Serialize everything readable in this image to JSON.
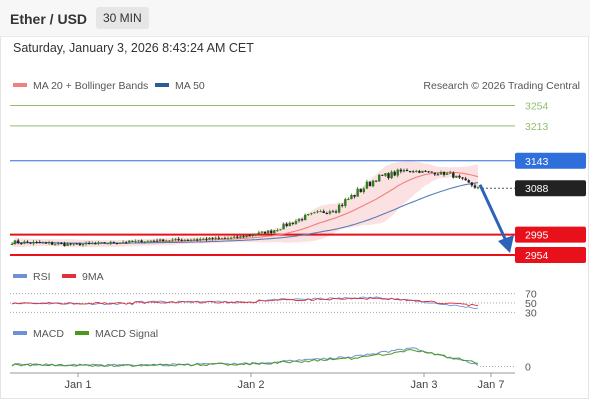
{
  "header": {
    "pair": "Ether / USD",
    "timeframe": "30 MIN"
  },
  "datetime": "Saturday, January 3, 2026 8:43:24 AM CET",
  "legend": {
    "ma20": "MA 20 + Bollinger Bands",
    "ma50": "MA 50",
    "credit": "Research © 2026 Trading Central",
    "rsi": "RSI",
    "rsi_ma": "9MA",
    "macd": "MACD",
    "macd_signal": "MACD Signal"
  },
  "colors": {
    "candle_up": "#2e7d1e",
    "candle_down": "#222222",
    "ma20": "#f08080",
    "band": "#f8c8c8",
    "ma50": "#5a7db5",
    "resistance": "#2f6fdc",
    "support": "#e8101a",
    "target_green": "#8fbf6f",
    "rsi": "#6f8fd8",
    "rsi_ma": "#e0303a",
    "macd": "#6f8fd8",
    "macd_signal": "#4a9a1a",
    "arrow": "#2c62b8"
  },
  "chart_data": [
    {
      "type": "line",
      "subtype": "candlestick",
      "instrument": "Ether / USD",
      "timeframe": "30 MIN",
      "x_ticks": [
        "Jan 1",
        "Jan 2",
        "Jan 3",
        "Jan 7"
      ],
      "ylim": [
        2940,
        3275
      ],
      "levels": [
        {
          "value": 3254,
          "label": "3254",
          "kind": "target"
        },
        {
          "value": 3213,
          "label": "3213",
          "kind": "target"
        },
        {
          "value": 3143,
          "label": "3143",
          "kind": "resistance"
        },
        {
          "value": 3088,
          "label": "3088",
          "kind": "last"
        },
        {
          "value": 2995,
          "label": "2995",
          "kind": "support"
        },
        {
          "value": 2954,
          "label": "2954",
          "kind": "support"
        }
      ],
      "segments": [
        {
          "bars": 20,
          "start": 2980,
          "end": 2975,
          "noise": 5
        },
        {
          "bars": 26,
          "start": 2975,
          "end": 2983,
          "noise": 3
        },
        {
          "bars": 26,
          "start": 2983,
          "end": 2988,
          "noise": 3
        },
        {
          "bars": 12,
          "start": 2988,
          "end": 3002,
          "noise": 4
        },
        {
          "bars": 11,
          "start": 3002,
          "end": 3030,
          "noise": 6
        },
        {
          "bars": 10,
          "start": 3030,
          "end": 3048,
          "noise": 7
        },
        {
          "bars": 13,
          "start": 3048,
          "end": 3108,
          "noise": 11
        },
        {
          "bars": 10,
          "start": 3108,
          "end": 3124,
          "noise": 8
        },
        {
          "bars": 14,
          "start": 3124,
          "end": 3116,
          "noise": 4
        },
        {
          "bars": 10,
          "start": 3116,
          "end": 3085,
          "noise": 5
        }
      ],
      "forecast": {
        "from": 3095,
        "to": 2962
      }
    },
    {
      "type": "line",
      "name_printed": "RSI",
      "ylim": [
        20,
        80
      ],
      "y_ticks": [
        70,
        50,
        30
      ],
      "series": [
        {
          "name": "RSI",
          "segments": [
            [
              40,
              50,
              48
            ],
            [
              40,
              52,
              52
            ],
            [
              40,
              56,
              62
            ],
            [
              32,
              62,
              38
            ]
          ]
        },
        {
          "name": "9MA",
          "segments": [
            [
              40,
              50,
              49
            ],
            [
              40,
              51,
              52
            ],
            [
              40,
              55,
              60
            ],
            [
              32,
              60,
              44
            ]
          ]
        }
      ]
    },
    {
      "type": "line",
      "name_printed": "MACD",
      "ylim": [
        -10,
        45
      ],
      "y_ticks": [
        0
      ],
      "series": [
        {
          "name": "MACD",
          "segments": [
            [
              40,
              4,
              2
            ],
            [
              40,
              2,
              6
            ],
            [
              30,
              6,
              18
            ],
            [
              20,
              18,
              34
            ],
            [
              22,
              34,
              2
            ]
          ]
        },
        {
          "name": "MACD Signal",
          "segments": [
            [
              40,
              3,
              2
            ],
            [
              40,
              2,
              5
            ],
            [
              30,
              5,
              15
            ],
            [
              20,
              15,
              30
            ],
            [
              22,
              30,
              6
            ]
          ]
        }
      ]
    }
  ]
}
